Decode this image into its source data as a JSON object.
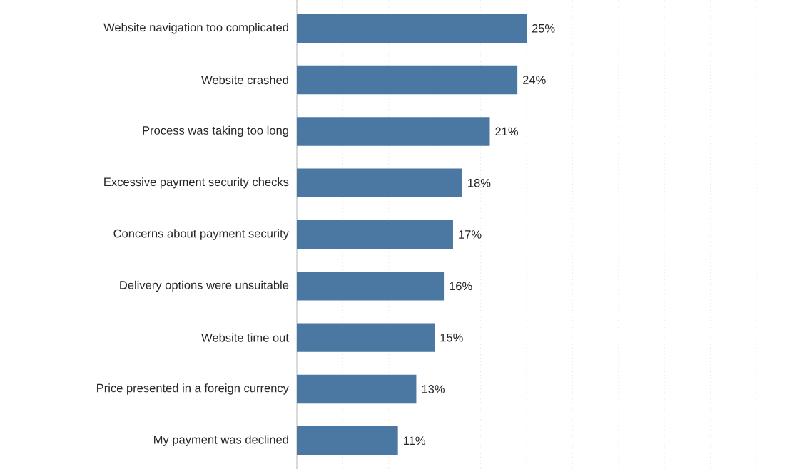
{
  "chart_data": {
    "type": "bar",
    "orientation": "horizontal",
    "categories": [
      "Website navigation too complicated",
      "Website crashed",
      "Process was taking too long",
      "Excessive payment security checks",
      "Concerns about payment security",
      "Delivery options were unsuitable",
      "Website time out",
      "Price presented in a foreign currency",
      "My payment was declined"
    ],
    "values": [
      25,
      24,
      21,
      18,
      17,
      16,
      15,
      13,
      11
    ],
    "value_labels": [
      "25%",
      "24%",
      "21%",
      "18%",
      "17%",
      "16%",
      "15%",
      "13%",
      "11%"
    ],
    "color": "#4a78a2",
    "xlim": [
      0,
      50
    ],
    "xticks": [
      {
        "value": 0,
        "label": null
      },
      {
        "value": 5,
        "label": null
      },
      {
        "value": 10,
        "label": null
      },
      {
        "value": 15,
        "label": null
      },
      {
        "value": 20,
        "label": null
      },
      {
        "value": 25,
        "label": null
      },
      {
        "value": 30,
        "label": null
      },
      {
        "value": 35,
        "label": null
      },
      {
        "value": 40,
        "label": null
      },
      {
        "value": 45,
        "label": null
      },
      {
        "value": 50,
        "label": null
      }
    ],
    "grid": "x",
    "tick_labels": "y"
  }
}
